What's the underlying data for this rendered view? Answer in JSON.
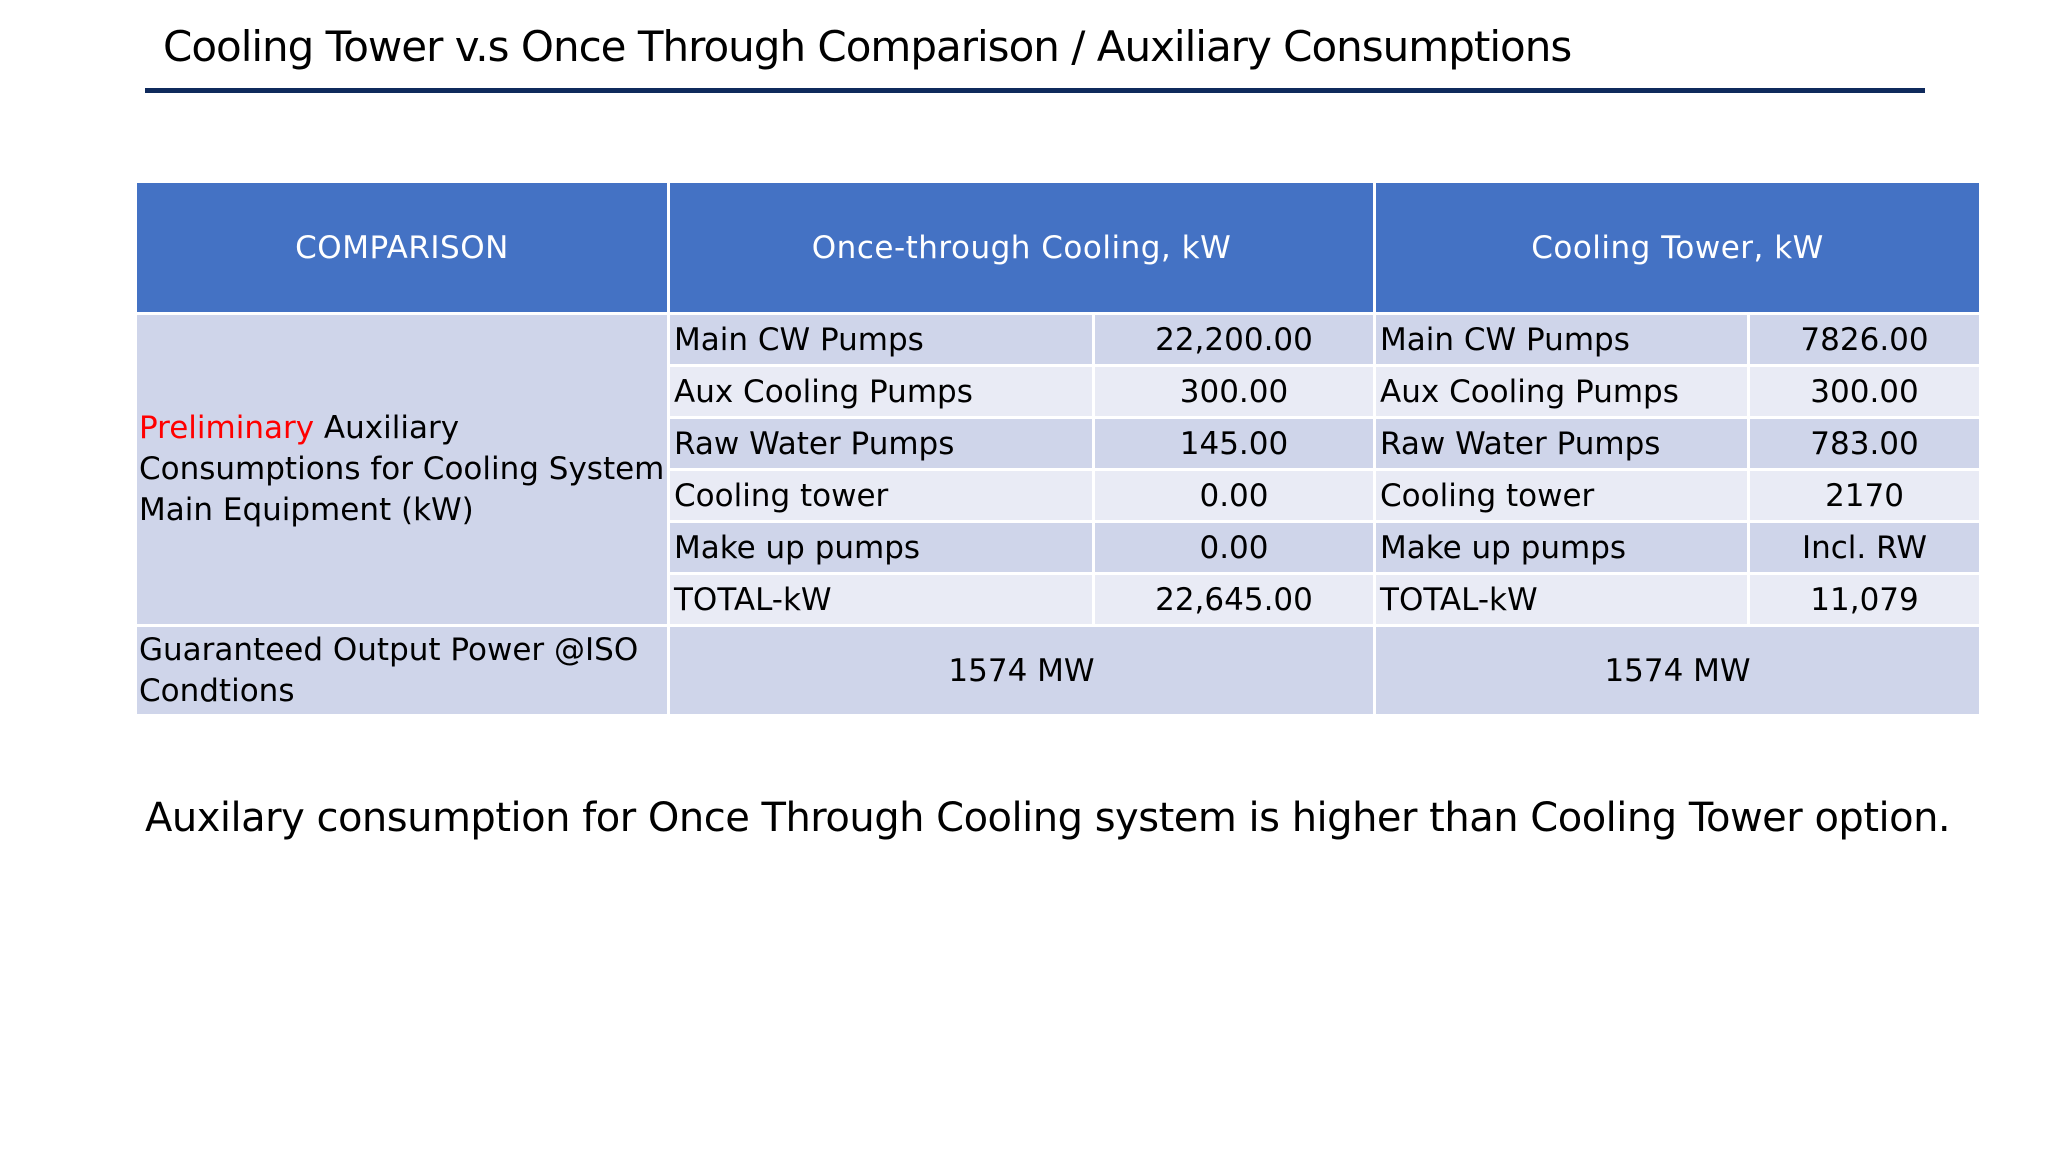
{
  "page": {
    "title": "Cooling Tower v.s Once Through Comparison / Auxiliary Consumptions",
    "conclusion": "Auxilary consumption for Once Through Cooling system is higher than Cooling Tower option."
  },
  "colors": {
    "header_bg": "#4472c4",
    "row_dark": "#cfd5ea",
    "row_light": "#e9ebf5",
    "title_rule": "#0f2a5c",
    "highlight": "#ff0000"
  },
  "table": {
    "headers": {
      "comparison": "COMPARISON",
      "once_through": "Once-through Cooling, kW",
      "cooling_tower": "Cooling Tower, kW"
    },
    "side_label": {
      "highlight": "Preliminary",
      "rest": " Auxiliary Consumptions for Cooling System Main Equipment (kW)"
    },
    "rows": [
      {
        "ot_label": "Main CW Pumps",
        "ot_value": "22,200.00",
        "ct_label": "Main CW Pumps",
        "ct_value": "7826.00"
      },
      {
        "ot_label": "Aux Cooling Pumps",
        "ot_value": "300.00",
        "ct_label": "Aux Cooling Pumps",
        "ct_value": "300.00"
      },
      {
        "ot_label": "Raw Water Pumps",
        "ot_value": "145.00",
        "ct_label": "Raw Water Pumps",
        "ct_value": "783.00"
      },
      {
        "ot_label": "Cooling tower",
        "ot_value": "0.00",
        "ct_label": "Cooling tower",
        "ct_value": "2170"
      },
      {
        "ot_label": "Make up pumps",
        "ot_value": "0.00",
        "ct_label": "Make up pumps",
        "ct_value": "Incl. RW"
      },
      {
        "ot_label": "TOTAL-kW",
        "ot_value": "22,645.00",
        "ct_label": "TOTAL-kW",
        "ct_value": "11,079"
      }
    ],
    "guaranteed": {
      "label": "Guaranteed  Output Power  @ISO Condtions",
      "once_through": "1574 MW",
      "cooling_tower": "1574 MW"
    }
  }
}
